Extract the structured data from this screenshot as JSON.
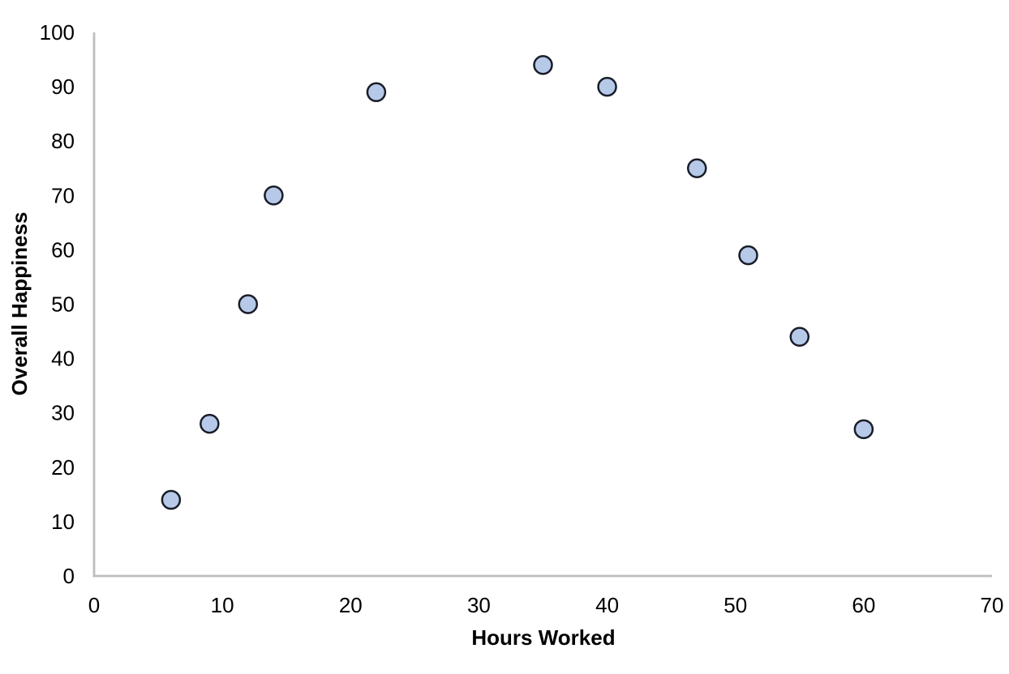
{
  "chart_data": {
    "type": "scatter",
    "xlabel": "Hours Worked",
    "ylabel": "Overall Happiness",
    "x": [
      6,
      9,
      12,
      14,
      22,
      35,
      40,
      47,
      51,
      55,
      60
    ],
    "y": [
      14,
      28,
      50,
      70,
      89,
      94,
      90,
      75,
      59,
      44,
      27
    ],
    "xlim": [
      0,
      70
    ],
    "ylim": [
      0,
      100
    ],
    "x_ticks": [
      0,
      10,
      20,
      30,
      40,
      50,
      60,
      70
    ],
    "y_ticks": [
      0,
      10,
      20,
      30,
      40,
      50,
      60,
      70,
      80,
      90,
      100
    ],
    "grid": false,
    "legend": false,
    "colors": {
      "marker_fill": "#B7C9E8",
      "marker_stroke": "#191D29",
      "axis_line": "#BDBDBD",
      "text": "#000000"
    }
  }
}
